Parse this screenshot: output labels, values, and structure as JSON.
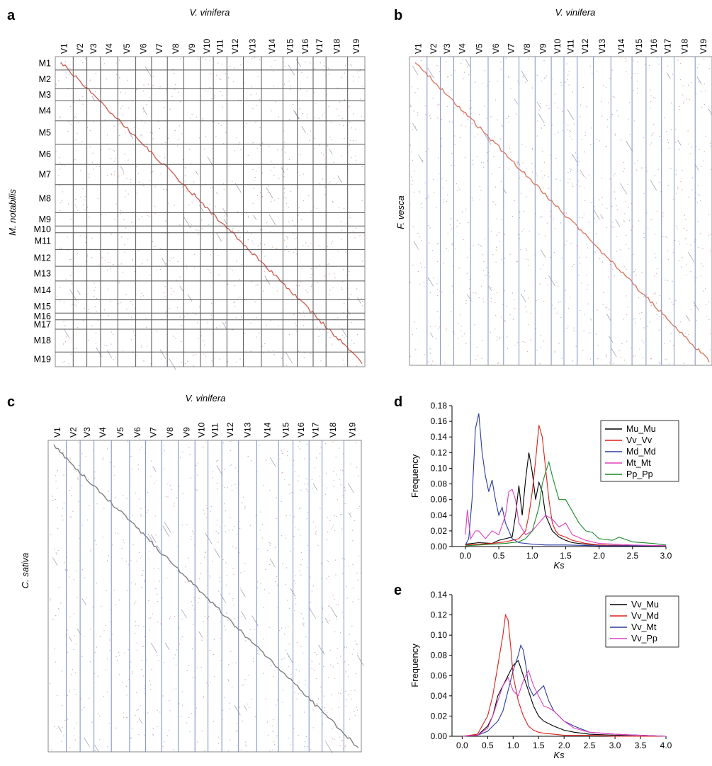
{
  "panels": {
    "a": {
      "letter": "a",
      "x_title": "V. vinifera",
      "y_title": "M. notabilis",
      "x_labels": [
        "V1",
        "V2",
        "V3",
        "V4",
        "V5",
        "V6",
        "V7",
        "V8",
        "V9",
        "V10",
        "V11",
        "V12",
        "V13",
        "V14",
        "V15",
        "V16",
        "V17",
        "V18",
        "V19"
      ],
      "y_labels": [
        "M1",
        "M2",
        "M3",
        "M4",
        "M5",
        "M6",
        "M7",
        "M8",
        "M9",
        "M10",
        "M11",
        "M12",
        "M13",
        "M14",
        "M15",
        "M16",
        "M17",
        "M18",
        "M19"
      ],
      "x_chrom_sizes": [
        25,
        19,
        19,
        24,
        25,
        22,
        22,
        23,
        23,
        18,
        19,
        23,
        25,
        30,
        20,
        22,
        18,
        30,
        24
      ],
      "y_chrom_sizes": [
        20,
        28,
        18,
        30,
        35,
        30,
        30,
        42,
        20,
        10,
        25,
        25,
        22,
        28,
        20,
        10,
        14,
        34,
        22
      ],
      "line_color": "#555555",
      "dot_color": "#c03020"
    },
    "b": {
      "letter": "b",
      "x_title": "V. vinifera",
      "y_title": "F. vesca",
      "x_labels": [
        "V1",
        "V2",
        "V3",
        "V4",
        "V5",
        "V6",
        "V7",
        "V8",
        "V9",
        "V10",
        "V11",
        "V12",
        "V13",
        "V14",
        "V15",
        "V16",
        "V17",
        "V18",
        "V19"
      ],
      "x_chrom_sizes": [
        25,
        19,
        19,
        24,
        25,
        22,
        22,
        23,
        23,
        18,
        19,
        23,
        25,
        30,
        20,
        22,
        18,
        30,
        24
      ],
      "line_color": "#8090c8",
      "dot_color": "#d05030"
    },
    "c": {
      "letter": "c",
      "x_title": "V. vinifera",
      "y_title": "C. sativa",
      "x_labels": [
        "V1",
        "V2",
        "V3",
        "V4",
        "V5",
        "V6",
        "V7",
        "V8",
        "V9",
        "V10",
        "V11",
        "V12",
        "V13",
        "V14",
        "V15",
        "V16",
        "V17",
        "V18",
        "V19"
      ],
      "x_chrom_sizes": [
        25,
        19,
        19,
        24,
        25,
        22,
        22,
        23,
        23,
        18,
        19,
        23,
        25,
        30,
        20,
        22,
        18,
        30,
        24
      ],
      "line_color": "#7a8cc8",
      "dot_color": "#555555"
    },
    "d": {
      "letter": "d",
      "ylabel": "Frequency",
      "xlabel": "Ks",
      "xlim": [
        -0.2,
        3.0
      ],
      "ylim": [
        0,
        0.18
      ],
      "x_ticks": [
        "0.0",
        "0.5",
        "1.0",
        "1.5",
        "2.0",
        "2.5",
        "3.0"
      ],
      "x_tick_values": [
        0,
        0.5,
        1.0,
        1.5,
        2.0,
        2.5,
        3.0
      ],
      "y_ticks": [
        "0.00",
        "0.02",
        "0.04",
        "0.06",
        "0.08",
        "0.10",
        "0.12",
        "0.14",
        "0.16",
        "0.18"
      ],
      "y_tick_values": [
        0,
        0.02,
        0.04,
        0.06,
        0.08,
        0.1,
        0.12,
        0.14,
        0.16,
        0.18
      ]
    },
    "e": {
      "letter": "e",
      "ylabel": "Frequency",
      "xlabel": "Ks",
      "xlim": [
        -0.2,
        4.0
      ],
      "ylim": [
        0,
        0.14
      ],
      "x_ticks": [
        "0.0",
        "0.5",
        "1.0",
        "1.5",
        "2.0",
        "2.5",
        "3.0",
        "3.5",
        "4.0"
      ],
      "x_tick_values": [
        0,
        0.5,
        1.0,
        1.5,
        2.0,
        2.5,
        3.0,
        3.5,
        4.0
      ],
      "y_ticks": [
        "0.00",
        "0.02",
        "0.04",
        "0.06",
        "0.08",
        "0.10",
        "0.12",
        "0.14"
      ],
      "y_tick_values": [
        0,
        0.02,
        0.04,
        0.06,
        0.08,
        0.1,
        0.12,
        0.14
      ]
    }
  },
  "chart_data": [
    {
      "type": "line",
      "panel": "d",
      "xlabel": "Ks",
      "ylabel": "Frequency",
      "xlim": [
        -0.2,
        3.0
      ],
      "ylim": [
        0,
        0.18
      ],
      "legend": "top-right",
      "series": [
        {
          "name": "Mu_Mu",
          "color": "#000000",
          "x": [
            0,
            0.2,
            0.4,
            0.5,
            0.6,
            0.7,
            0.75,
            0.8,
            0.85,
            0.9,
            0.95,
            1.0,
            1.05,
            1.1,
            1.15,
            1.2,
            1.3,
            1.4,
            1.5,
            1.6,
            1.8,
            2.0,
            2.5,
            3.0
          ],
          "y": [
            0.003,
            0.005,
            0.004,
            0.008,
            0.01,
            0.012,
            0.04,
            0.078,
            0.04,
            0.085,
            0.12,
            0.095,
            0.06,
            0.082,
            0.07,
            0.04,
            0.02,
            0.012,
            0.008,
            0.005,
            0.003,
            0.002,
            0.001,
            0.001
          ]
        },
        {
          "name": "Vv_Vv",
          "color": "#e0201a",
          "x": [
            0,
            0.2,
            0.4,
            0.6,
            0.8,
            0.9,
            0.95,
            1.0,
            1.05,
            1.1,
            1.15,
            1.2,
            1.25,
            1.3,
            1.35,
            1.4,
            1.5,
            1.6,
            1.8,
            2.0,
            2.5,
            3.0
          ],
          "y": [
            0.002,
            0.003,
            0.004,
            0.006,
            0.01,
            0.02,
            0.04,
            0.07,
            0.11,
            0.155,
            0.14,
            0.1,
            0.06,
            0.03,
            0.02,
            0.015,
            0.012,
            0.008,
            0.004,
            0.002,
            0.001,
            0.001
          ]
        },
        {
          "name": "Md_Md",
          "color": "#2a3aa0",
          "x": [
            0,
            0.05,
            0.1,
            0.15,
            0.2,
            0.25,
            0.3,
            0.35,
            0.4,
            0.45,
            0.5,
            0.55,
            0.6,
            0.7,
            0.8,
            1.0,
            1.2,
            1.5,
            2.0,
            2.5,
            3.0
          ],
          "y": [
            0.002,
            0.01,
            0.06,
            0.15,
            0.17,
            0.12,
            0.09,
            0.07,
            0.085,
            0.06,
            0.04,
            0.05,
            0.03,
            0.01,
            0.005,
            0.003,
            0.002,
            0.002,
            0.001,
            0.001,
            0.001
          ]
        },
        {
          "name": "Mt_Mt",
          "color": "#e040c0",
          "x": [
            0,
            0.03,
            0.08,
            0.15,
            0.2,
            0.3,
            0.4,
            0.5,
            0.6,
            0.65,
            0.7,
            0.75,
            0.8,
            0.9,
            1.0,
            1.1,
            1.2,
            1.3,
            1.4,
            1.5,
            1.6,
            1.8,
            2.0,
            2.5,
            3.0
          ],
          "y": [
            0.015,
            0.047,
            0.01,
            0.02,
            0.02,
            0.01,
            0.02,
            0.015,
            0.04,
            0.07,
            0.073,
            0.06,
            0.03,
            0.015,
            0.02,
            0.03,
            0.04,
            0.035,
            0.025,
            0.03,
            0.015,
            0.008,
            0.004,
            0.002,
            0.001
          ]
        },
        {
          "name": "Pp_Pp",
          "color": "#1a8a2a",
          "x": [
            0,
            0.2,
            0.4,
            0.6,
            0.8,
            0.9,
            1.0,
            1.1,
            1.15,
            1.2,
            1.25,
            1.3,
            1.35,
            1.4,
            1.5,
            1.6,
            1.7,
            1.8,
            1.9,
            2.0,
            2.2,
            2.3,
            2.5,
            2.8,
            3.0
          ],
          "y": [
            0.001,
            0.002,
            0.003,
            0.004,
            0.006,
            0.01,
            0.02,
            0.05,
            0.08,
            0.095,
            0.108,
            0.09,
            0.075,
            0.06,
            0.06,
            0.045,
            0.03,
            0.02,
            0.018,
            0.01,
            0.008,
            0.012,
            0.006,
            0.004,
            0.002
          ]
        }
      ]
    },
    {
      "type": "line",
      "panel": "e",
      "xlabel": "Ks",
      "ylabel": "Frequency",
      "xlim": [
        -0.2,
        4.0
      ],
      "ylim": [
        0,
        0.14
      ],
      "legend": "top-right",
      "series": [
        {
          "name": "Vv_Mu",
          "color": "#000000",
          "x": [
            0,
            0.3,
            0.5,
            0.6,
            0.7,
            0.8,
            0.9,
            1.0,
            1.1,
            1.2,
            1.3,
            1.4,
            1.5,
            1.6,
            1.8,
            2.0,
            2.2,
            2.5,
            3.0,
            3.5,
            4.0
          ],
          "y": [
            0.0,
            0.001,
            0.01,
            0.02,
            0.04,
            0.05,
            0.06,
            0.07,
            0.075,
            0.06,
            0.045,
            0.03,
            0.02,
            0.015,
            0.01,
            0.006,
            0.004,
            0.002,
            0.001,
            0.001,
            0.0
          ]
        },
        {
          "name": "Vv_Md",
          "color": "#e0201a",
          "x": [
            0,
            0.3,
            0.5,
            0.6,
            0.7,
            0.8,
            0.85,
            0.9,
            0.95,
            1.0,
            1.1,
            1.2,
            1.3,
            1.4,
            1.5,
            1.6,
            1.8,
            2.0,
            2.5,
            3.0,
            3.5,
            4.0
          ],
          "y": [
            0.0,
            0.002,
            0.02,
            0.04,
            0.07,
            0.1,
            0.12,
            0.115,
            0.09,
            0.06,
            0.035,
            0.02,
            0.01,
            0.006,
            0.004,
            0.003,
            0.002,
            0.001,
            0.001,
            0.0,
            0.0,
            0.0
          ]
        },
        {
          "name": "Vv_Mt",
          "color": "#2a3aa0",
          "x": [
            0,
            0.3,
            0.5,
            0.7,
            0.8,
            0.9,
            1.0,
            1.1,
            1.15,
            1.2,
            1.25,
            1.3,
            1.4,
            1.5,
            1.6,
            1.7,
            1.8,
            2.0,
            2.2,
            2.5,
            3.0,
            3.5,
            4.0
          ],
          "y": [
            0.0,
            0.001,
            0.005,
            0.015,
            0.025,
            0.045,
            0.065,
            0.08,
            0.09,
            0.085,
            0.07,
            0.05,
            0.04,
            0.045,
            0.05,
            0.035,
            0.025,
            0.015,
            0.01,
            0.004,
            0.002,
            0.001,
            0.0
          ]
        },
        {
          "name": "Vv_Pp",
          "color": "#e040c0",
          "x": [
            0,
            0.3,
            0.5,
            0.6,
            0.7,
            0.8,
            0.9,
            1.0,
            1.1,
            1.2,
            1.3,
            1.4,
            1.5,
            1.6,
            1.7,
            1.8,
            1.9,
            2.0,
            2.2,
            2.5,
            3.0,
            3.5,
            4.0
          ],
          "y": [
            0.0,
            0.001,
            0.008,
            0.02,
            0.035,
            0.05,
            0.058,
            0.045,
            0.04,
            0.055,
            0.065,
            0.05,
            0.04,
            0.03,
            0.028,
            0.025,
            0.02,
            0.015,
            0.008,
            0.004,
            0.002,
            0.001,
            0.0
          ]
        }
      ]
    }
  ]
}
